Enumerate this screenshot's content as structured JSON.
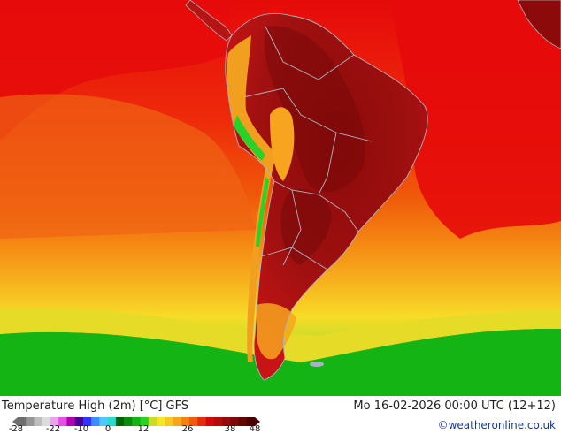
{
  "map": {
    "title": "Temperature High (2m) [°C] GFS",
    "valid_time": "Mo 16-02-2026 00:00 UTC (12+12)",
    "credit": "©weatheronline.co.uk",
    "colors": {
      "ocean_hot": "#e60a0a",
      "ocean_warm": "#f05a0a",
      "ocean_mild": "#f7a51e",
      "ocean_cool": "#f7dc28",
      "cold_green": "#0fb40f",
      "land_hot": "#b41414",
      "land_very_hot": "#780a0a",
      "border": "#aab4be"
    }
  },
  "legend": {
    "ticks": [
      "-28",
      "-22",
      "-10",
      "0",
      "12",
      "26",
      "38",
      "48"
    ],
    "colors": [
      "#6e6e6e",
      "#969696",
      "#bebebe",
      "#dcdcdc",
      "#f0a0f0",
      "#e650e6",
      "#b400b4",
      "#4b0096",
      "#3232ff",
      "#3c8cff",
      "#50c8ff",
      "#28dcc8",
      "#006400",
      "#0a8c0a",
      "#14b414",
      "#28d228",
      "#c8dc28",
      "#f5e628",
      "#f7c81e",
      "#f7a51e",
      "#f5820f",
      "#f05a0a",
      "#e62d0a",
      "#d20a0a",
      "#b40a0a",
      "#960a0a",
      "#7d0a0a",
      "#640505",
      "#4b0000"
    ]
  }
}
